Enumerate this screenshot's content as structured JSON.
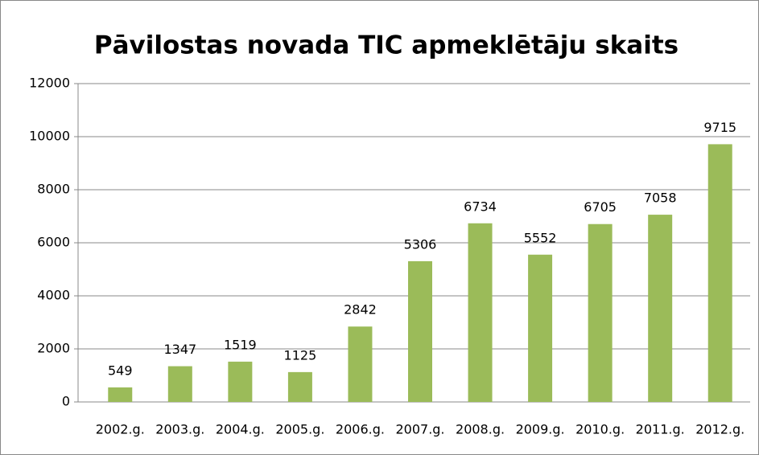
{
  "chart_data": {
    "type": "bar",
    "title": "Pāvilostas novada TIC apmeklētāju skaits",
    "categories": [
      "2002.g.",
      "2003.g.",
      "2004.g.",
      "2005.g.",
      "2006.g.",
      "2007.g.",
      "2008.g.",
      "2009.g.",
      "2010.g.",
      "2011.g.",
      "2012.g."
    ],
    "values": [
      549,
      1347,
      1519,
      1125,
      2842,
      5306,
      6734,
      5552,
      6705,
      7058,
      9715
    ],
    "color": "#9bbb59",
    "ylim": [
      0,
      12000
    ],
    "yticks": [
      0,
      2000,
      4000,
      6000,
      8000,
      10000,
      12000
    ],
    "grid": true,
    "data_labels": true
  }
}
